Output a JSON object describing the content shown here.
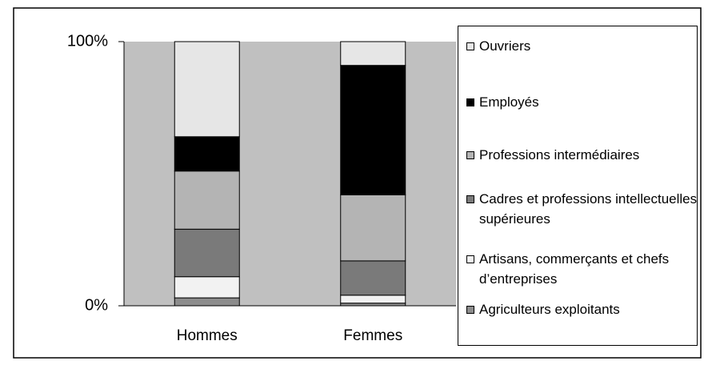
{
  "chart_data": {
    "type": "stacked_bar",
    "categories": [
      "Hommes",
      "Femmes"
    ],
    "series": [
      {
        "name": "Ouvriers",
        "color": "#e6e6e6",
        "values": [
          36,
          9
        ]
      },
      {
        "name": "Employés",
        "color": "#000000",
        "values": [
          13,
          49
        ]
      },
      {
        "name": "Professions intermédiaires",
        "color": "#b4b4b4",
        "values": [
          22,
          25
        ]
      },
      {
        "name": "Cadres et professions intellectuelles supérieures",
        "color": "#7a7a7a",
        "values": [
          18,
          13
        ]
      },
      {
        "name": "Artisans, commerçants et chefs d’entreprises",
        "color": "#f2f2f2",
        "values": [
          8,
          3
        ]
      },
      {
        "name": "Agriculteurs exploitants",
        "color": "#8c8c8c",
        "values": [
          3,
          1
        ]
      }
    ],
    "ylim": [
      0,
      100
    ],
    "yticks": [
      {
        "value": 0,
        "label": "0%"
      },
      {
        "value": 100,
        "label": "100%"
      }
    ],
    "plot_color": "#c0c0c0"
  }
}
